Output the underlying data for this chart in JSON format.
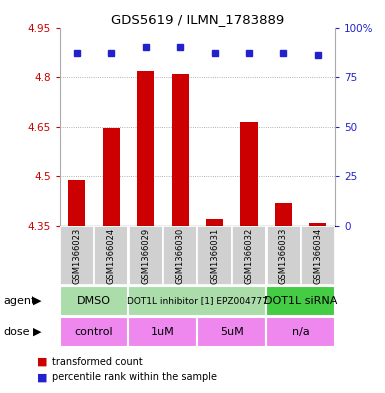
{
  "title": "GDS5619 / ILMN_1783889",
  "samples": [
    "GSM1366023",
    "GSM1366024",
    "GSM1366029",
    "GSM1366030",
    "GSM1366031",
    "GSM1366032",
    "GSM1366033",
    "GSM1366034"
  ],
  "transformed_counts": [
    4.49,
    4.645,
    4.82,
    4.81,
    4.37,
    4.665,
    4.42,
    4.36
  ],
  "percentile_ranks": [
    87,
    87,
    90,
    90,
    87,
    87,
    87,
    86
  ],
  "ylim": [
    4.35,
    4.95
  ],
  "yticks": [
    4.35,
    4.5,
    4.65,
    4.8,
    4.95
  ],
  "right_yticks": [
    0,
    25,
    50,
    75,
    100
  ],
  "right_ylabels": [
    "0",
    "25",
    "50",
    "75",
    "100%"
  ],
  "bar_color": "#cc0000",
  "dot_color": "#2222cc",
  "bar_width": 0.5,
  "agent_row": [
    {
      "label": "DMSO",
      "start": 0,
      "end": 2,
      "color": "#aaddaa"
    },
    {
      "label": "DOT1L inhibitor [1] EPZ004777",
      "start": 2,
      "end": 6,
      "color": "#aaddaa"
    },
    {
      "label": "DOT1L siRNA",
      "start": 6,
      "end": 8,
      "color": "#44cc44"
    }
  ],
  "dose_row": [
    {
      "label": "control",
      "start": 0,
      "end": 2,
      "color": "#ee88ee"
    },
    {
      "label": "1uM",
      "start": 2,
      "end": 4,
      "color": "#ee88ee"
    },
    {
      "label": "5uM",
      "start": 4,
      "end": 6,
      "color": "#ee88ee"
    },
    {
      "label": "n/a",
      "start": 6,
      "end": 8,
      "color": "#ee88ee"
    }
  ],
  "legend_red_label": "transformed count",
  "legend_blue_label": "percentile rank within the sample",
  "ylabel_color": "#cc0000",
  "right_ylabel_color": "#2222cc",
  "grid_color": "#999999",
  "background_color": "#ffffff",
  "sample_box_color": "#d0d0d0",
  "group_boundaries": [
    2,
    6
  ]
}
